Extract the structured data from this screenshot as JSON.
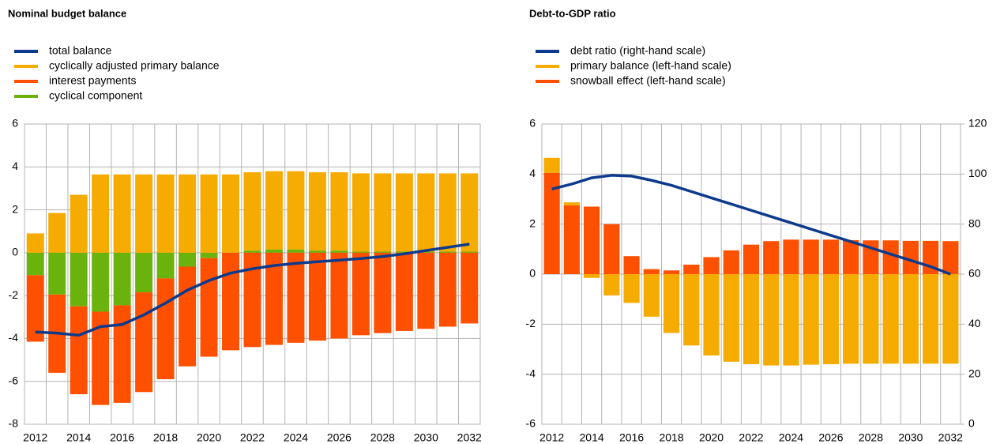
{
  "chart_data": [
    {
      "type": "bar",
      "stacked": true,
      "title": "Nominal budget balance",
      "categories": [
        "2012",
        null,
        "2014",
        null,
        "2016",
        null,
        "2018",
        null,
        "2020",
        null,
        "2022",
        null,
        "2024",
        null,
        "2026",
        null,
        "2028",
        null,
        "2030",
        null,
        "2032"
      ],
      "ylim": [
        -8,
        6
      ],
      "yticks": [
        -8,
        -6,
        -4,
        -2,
        0,
        2,
        4,
        6
      ],
      "grid": true,
      "series": [
        {
          "name": "total balance",
          "type": "line",
          "color": "#0d3a8c",
          "values": [
            -3.7,
            -3.75,
            -3.85,
            -3.45,
            -3.35,
            -2.9,
            -2.35,
            -1.75,
            -1.3,
            -0.95,
            -0.75,
            -0.6,
            -0.5,
            -0.42,
            -0.35,
            -0.27,
            -0.18,
            -0.05,
            0.1,
            0.25,
            0.4
          ]
        },
        {
          "name": "cyclically adjusted primary balance",
          "type": "bar",
          "color": "#f5ab00",
          "values": [
            0.9,
            1.85,
            2.7,
            3.65,
            3.65,
            3.65,
            3.65,
            3.65,
            3.65,
            3.65,
            3.65,
            3.65,
            3.65,
            3.65,
            3.65,
            3.65,
            3.65,
            3.65,
            3.65,
            3.65,
            3.65
          ]
        },
        {
          "name": "interest payments",
          "type": "bar",
          "color": "#ff5000",
          "values": [
            -3.1,
            -3.65,
            -4.1,
            -4.35,
            -4.55,
            -4.65,
            -4.7,
            -4.65,
            -4.6,
            -4.55,
            -4.4,
            -4.3,
            -4.2,
            -4.1,
            -4.0,
            -3.85,
            -3.75,
            -3.65,
            -3.55,
            -3.45,
            -3.3
          ]
        },
        {
          "name": "cyclical component",
          "type": "bar",
          "color": "#6ab30c",
          "values": [
            -1.05,
            -1.95,
            -2.5,
            -2.75,
            -2.45,
            -1.85,
            -1.2,
            -0.65,
            -0.25,
            0,
            0.1,
            0.15,
            0.15,
            0.1,
            0.1,
            0.05,
            0.05,
            0.05,
            0.05,
            0.05,
            0.05
          ]
        }
      ]
    },
    {
      "type": "bar",
      "stacked": true,
      "title": "Debt-to-GDP ratio",
      "categories": [
        "2012",
        null,
        "2014",
        null,
        "2016",
        null,
        "2018",
        null,
        "2020",
        null,
        "2022",
        null,
        "2024",
        null,
        "2026",
        null,
        "2028",
        null,
        "2030",
        null,
        "2032"
      ],
      "ylim": [
        -6,
        6
      ],
      "yticks": [
        -6,
        -4,
        -2,
        0,
        2,
        4,
        6
      ],
      "y2lim": [
        0,
        120
      ],
      "y2ticks": [
        0,
        20,
        40,
        60,
        80,
        100,
        120
      ],
      "grid": true,
      "series": [
        {
          "name": "debt ratio (right-hand  scale)",
          "type": "line",
          "axis": "y2",
          "color": "#0d3a8c",
          "values": [
            94,
            96,
            98.5,
            99.5,
            99.2,
            97.5,
            95.5,
            93,
            90.5,
            88,
            85.5,
            83,
            80.5,
            78,
            75.5,
            73,
            70.5,
            68,
            65.5,
            63,
            60
          ]
        },
        {
          "name": "primary balance (left-hand scale)",
          "type": "bar",
          "color": "#f5ab00",
          "values": [
            0.6,
            0.12,
            -0.15,
            -0.85,
            -1.15,
            -1.7,
            -2.35,
            -2.85,
            -3.25,
            -3.5,
            -3.6,
            -3.65,
            -3.65,
            -3.62,
            -3.6,
            -3.58,
            -3.58,
            -3.58,
            -3.58,
            -3.58,
            -3.58
          ]
        },
        {
          "name": "snowball effect (left-hand scale)",
          "type": "bar",
          "color": "#ff5000",
          "values": [
            4.05,
            2.75,
            2.7,
            2.0,
            0.72,
            0.2,
            0.15,
            0.38,
            0.68,
            0.95,
            1.18,
            1.32,
            1.38,
            1.38,
            1.38,
            1.36,
            1.35,
            1.35,
            1.33,
            1.33,
            1.32
          ]
        }
      ]
    }
  ]
}
